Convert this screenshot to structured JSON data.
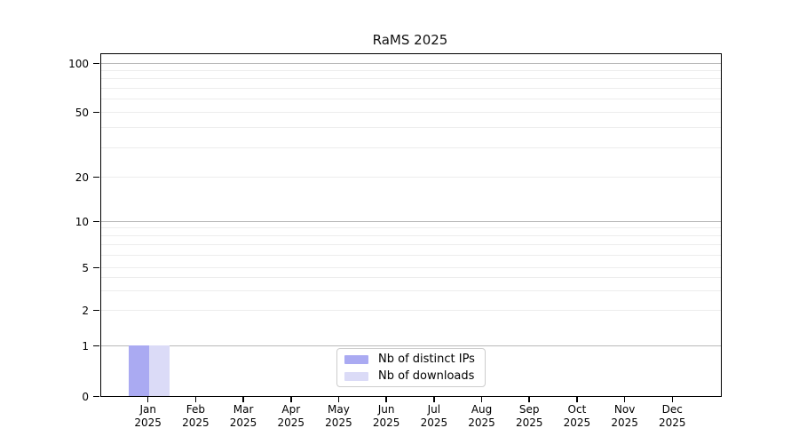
{
  "title": "RaMS 2025",
  "chart_data": {
    "type": "bar",
    "title": "RaMS 2025",
    "categories": [
      {
        "month": "Jan",
        "year": "2025"
      },
      {
        "month": "Feb",
        "year": "2025"
      },
      {
        "month": "Mar",
        "year": "2025"
      },
      {
        "month": "Apr",
        "year": "2025"
      },
      {
        "month": "May",
        "year": "2025"
      },
      {
        "month": "Jun",
        "year": "2025"
      },
      {
        "month": "Jul",
        "year": "2025"
      },
      {
        "month": "Aug",
        "year": "2025"
      },
      {
        "month": "Sep",
        "year": "2025"
      },
      {
        "month": "Oct",
        "year": "2025"
      },
      {
        "month": "Nov",
        "year": "2025"
      },
      {
        "month": "Dec",
        "year": "2025"
      }
    ],
    "series": [
      {
        "name": "Nb of distinct IPs",
        "color": "#aaaaf2",
        "values": [
          1,
          0,
          0,
          0,
          0,
          0,
          0,
          0,
          0,
          0,
          0,
          0
        ]
      },
      {
        "name": "Nb of downloads",
        "color": "#dbdbf7",
        "values": [
          1,
          0,
          0,
          0,
          0,
          0,
          0,
          0,
          0,
          0,
          0,
          0
        ]
      }
    ],
    "yscale": "symlog",
    "yticks": [
      0,
      1,
      2,
      5,
      10,
      20,
      50,
      100
    ],
    "minor_yticks": [
      3,
      4,
      6,
      7,
      8,
      9,
      30,
      40,
      60,
      70,
      80,
      90
    ],
    "ylim": [
      0,
      114
    ],
    "xlabel": "",
    "ylabel": "",
    "grid": "horizontal",
    "legend_position": "lower center"
  },
  "legend": {
    "items": [
      "Nb of distinct IPs",
      "Nb of downloads"
    ]
  },
  "colors": {
    "background": "#ffffff",
    "axis": "#000000",
    "decade_grid": "#b9b9b9",
    "minor_grid": "#ededed",
    "legend_border": "#cccccc",
    "bar_distinct_ips": "#aaaaf2",
    "bar_downloads": "#dbdbf7"
  }
}
